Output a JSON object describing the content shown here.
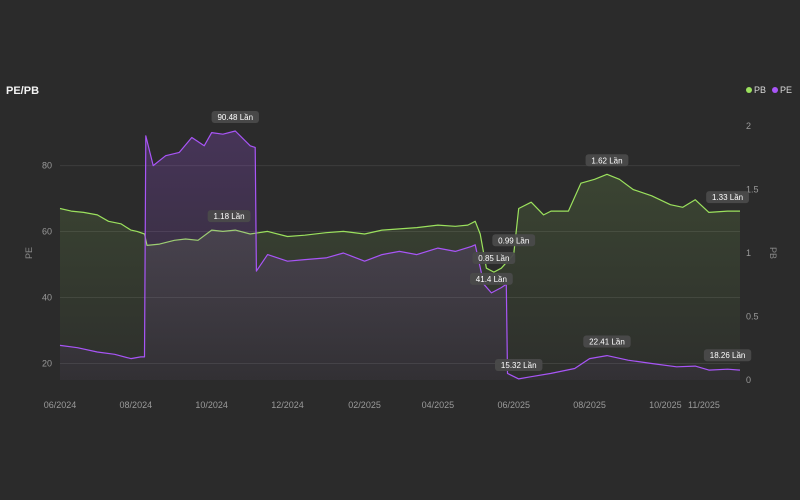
{
  "chart_data": {
    "type": "line",
    "title": "PE/PB",
    "ylabel_left": "PE",
    "ylabel_right": "PB",
    "ylim_left": [
      15,
      92
    ],
    "ylim_right": [
      0,
      2
    ],
    "left_ticks": [
      "20",
      "40",
      "60",
      "80"
    ],
    "right_ticks": [
      "0",
      "0.5",
      "1",
      "1.5",
      "2"
    ],
    "x_ticks": [
      "06/2024",
      "08/2024",
      "10/2024",
      "12/2024",
      "02/2025",
      "04/2025",
      "06/2025",
      "08/2025",
      "10/2025",
      "11/2025"
    ],
    "x_range": [
      "2024-06-01",
      "2025-11-30"
    ],
    "grid": true,
    "legend_position": "top-right",
    "series": [
      {
        "name": "PB",
        "axis": "right",
        "color": "#9be15d",
        "points": [
          [
            "2024-06-01",
            1.35
          ],
          [
            "2024-06-10",
            1.33
          ],
          [
            "2024-06-20",
            1.32
          ],
          [
            "2024-07-01",
            1.3
          ],
          [
            "2024-07-10",
            1.25
          ],
          [
            "2024-07-20",
            1.23
          ],
          [
            "2024-07-28",
            1.18
          ],
          [
            "2024-08-02",
            1.17
          ],
          [
            "2024-08-08",
            1.15
          ],
          [
            "2024-08-10",
            1.06
          ],
          [
            "2024-08-20",
            1.07
          ],
          [
            "2024-09-01",
            1.1
          ],
          [
            "2024-09-10",
            1.11
          ],
          [
            "2024-09-20",
            1.1
          ],
          [
            "2024-10-01",
            1.18
          ],
          [
            "2024-10-10",
            1.17
          ],
          [
            "2024-10-20",
            1.18
          ],
          [
            "2024-11-01",
            1.15
          ],
          [
            "2024-11-15",
            1.17
          ],
          [
            "2024-12-01",
            1.13
          ],
          [
            "2024-12-15",
            1.14
          ],
          [
            "2025-01-01",
            1.16
          ],
          [
            "2025-01-15",
            1.17
          ],
          [
            "2025-02-01",
            1.15
          ],
          [
            "2025-02-15",
            1.18
          ],
          [
            "2025-03-01",
            1.19
          ],
          [
            "2025-03-15",
            1.2
          ],
          [
            "2025-04-01",
            1.22
          ],
          [
            "2025-04-15",
            1.21
          ],
          [
            "2025-04-25",
            1.22
          ],
          [
            "2025-05-01",
            1.25
          ],
          [
            "2025-05-05",
            1.15
          ],
          [
            "2025-05-10",
            0.88
          ],
          [
            "2025-05-16",
            0.85
          ],
          [
            "2025-05-22",
            0.88
          ],
          [
            "2025-06-01",
            0.99
          ],
          [
            "2025-06-05",
            1.35
          ],
          [
            "2025-06-15",
            1.4
          ],
          [
            "2025-06-25",
            1.3
          ],
          [
            "2025-07-01",
            1.33
          ],
          [
            "2025-07-15",
            1.33
          ],
          [
            "2025-07-25",
            1.55
          ],
          [
            "2025-08-05",
            1.58
          ],
          [
            "2025-08-15",
            1.62
          ],
          [
            "2025-08-25",
            1.58
          ],
          [
            "2025-09-05",
            1.5
          ],
          [
            "2025-09-20",
            1.45
          ],
          [
            "2025-10-05",
            1.38
          ],
          [
            "2025-10-15",
            1.36
          ],
          [
            "2025-10-25",
            1.42
          ],
          [
            "2025-11-05",
            1.32
          ],
          [
            "2025-11-20",
            1.33
          ],
          [
            "2025-11-30",
            1.33
          ]
        ],
        "labels": [
          {
            "date": "2024-10-15",
            "value": 1.18,
            "text": "1.18 Lần"
          },
          {
            "date": "2025-05-16",
            "value": 0.85,
            "text": "0.85 Lần"
          },
          {
            "date": "2025-06-01",
            "value": 0.99,
            "text": "0.99 Lần"
          },
          {
            "date": "2025-08-15",
            "value": 1.62,
            "text": "1.62 Lần"
          },
          {
            "date": "2025-11-20",
            "value": 1.33,
            "text": "1.33 Lần"
          }
        ]
      },
      {
        "name": "PE",
        "axis": "left",
        "color": "#a855f7",
        "points": [
          [
            "2024-06-01",
            25.5
          ],
          [
            "2024-06-15",
            24.8
          ],
          [
            "2024-07-01",
            23.5
          ],
          [
            "2024-07-15",
            22.8
          ],
          [
            "2024-07-28",
            21.5
          ],
          [
            "2024-08-05",
            22.0
          ],
          [
            "2024-08-08",
            22.0
          ],
          [
            "2024-08-09",
            89.0
          ],
          [
            "2024-08-15",
            80.0
          ],
          [
            "2024-08-25",
            83.0
          ],
          [
            "2024-09-05",
            84.0
          ],
          [
            "2024-09-15",
            88.5
          ],
          [
            "2024-09-25",
            86.0
          ],
          [
            "2024-10-01",
            90.0
          ],
          [
            "2024-10-10",
            89.5
          ],
          [
            "2024-10-20",
            90.48
          ],
          [
            "2024-11-01",
            86.0
          ],
          [
            "2024-11-05",
            85.5
          ],
          [
            "2024-11-06",
            48.0
          ],
          [
            "2024-11-15",
            53.0
          ],
          [
            "2024-12-01",
            51.0
          ],
          [
            "2024-12-15",
            51.5
          ],
          [
            "2025-01-01",
            52.0
          ],
          [
            "2025-01-15",
            53.5
          ],
          [
            "2025-02-01",
            51.0
          ],
          [
            "2025-02-15",
            53.0
          ],
          [
            "2025-03-01",
            54.0
          ],
          [
            "2025-03-15",
            53.0
          ],
          [
            "2025-04-01",
            55.0
          ],
          [
            "2025-04-15",
            54.0
          ],
          [
            "2025-04-28",
            55.5
          ],
          [
            "2025-05-01",
            56.0
          ],
          [
            "2025-05-08",
            44.0
          ],
          [
            "2025-05-14",
            41.4
          ],
          [
            "2025-05-22",
            43.0
          ],
          [
            "2025-05-26",
            44.0
          ],
          [
            "2025-05-27",
            17.0
          ],
          [
            "2025-06-05",
            15.32
          ],
          [
            "2025-06-15",
            16.0
          ],
          [
            "2025-07-01",
            17.0
          ],
          [
            "2025-07-20",
            18.5
          ],
          [
            "2025-08-01",
            21.5
          ],
          [
            "2025-08-15",
            22.41
          ],
          [
            "2025-09-01",
            21.0
          ],
          [
            "2025-09-20",
            20.0
          ],
          [
            "2025-10-10",
            19.0
          ],
          [
            "2025-10-25",
            19.2
          ],
          [
            "2025-11-05",
            18.0
          ],
          [
            "2025-11-20",
            18.26
          ],
          [
            "2025-11-30",
            18.0
          ]
        ],
        "labels": [
          {
            "date": "2024-10-20",
            "value": 90.48,
            "text": "90.48 Lần"
          },
          {
            "date": "2025-05-14",
            "value": 41.4,
            "text": "41.4 Lần"
          },
          {
            "date": "2025-06-05",
            "value": 15.32,
            "text": "15.32 Lần"
          },
          {
            "date": "2025-08-15",
            "value": 22.41,
            "text": "22.41 Lần"
          },
          {
            "date": "2025-11-20",
            "value": 18.26,
            "text": "18.26 Lần"
          }
        ]
      }
    ]
  }
}
